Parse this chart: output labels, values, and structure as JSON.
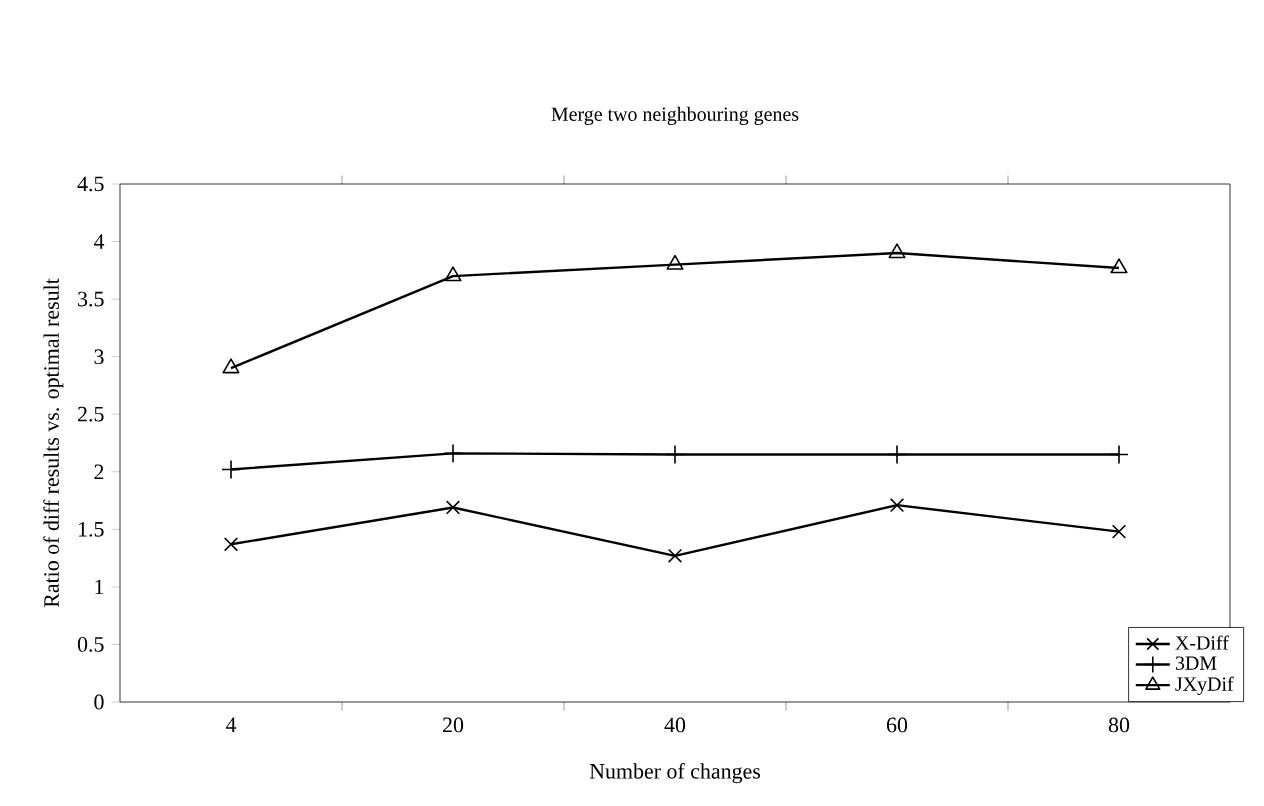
{
  "chart_data": {
    "type": "line",
    "title": "Merge two neighbouring genes",
    "xlabel": "Number of changes",
    "ylabel": "Ratio of diff results vs. optimal result",
    "categories": [
      "4",
      "20",
      "40",
      "60",
      "80"
    ],
    "series": [
      {
        "name": "X-Diff",
        "color": "#000000",
        "marker": "cross",
        "values": [
          1.37,
          1.69,
          1.27,
          1.71,
          1.48
        ]
      },
      {
        "name": "3DM",
        "color": "#000000",
        "marker": "plus",
        "values": [
          2.02,
          2.16,
          2.15,
          2.15,
          2.15
        ]
      },
      {
        "name": "JXyDif",
        "color": "#000000",
        "marker": "triangle",
        "values": [
          2.9,
          3.7,
          3.8,
          3.9,
          3.77
        ]
      }
    ],
    "ylim": [
      0,
      4.5
    ],
    "yticks": [
      0,
      0.5,
      1,
      1.5,
      2,
      2.5,
      3,
      3.5,
      4,
      4.5
    ],
    "grid": false,
    "legend": "bottom right",
    "line_style": "solid"
  }
}
